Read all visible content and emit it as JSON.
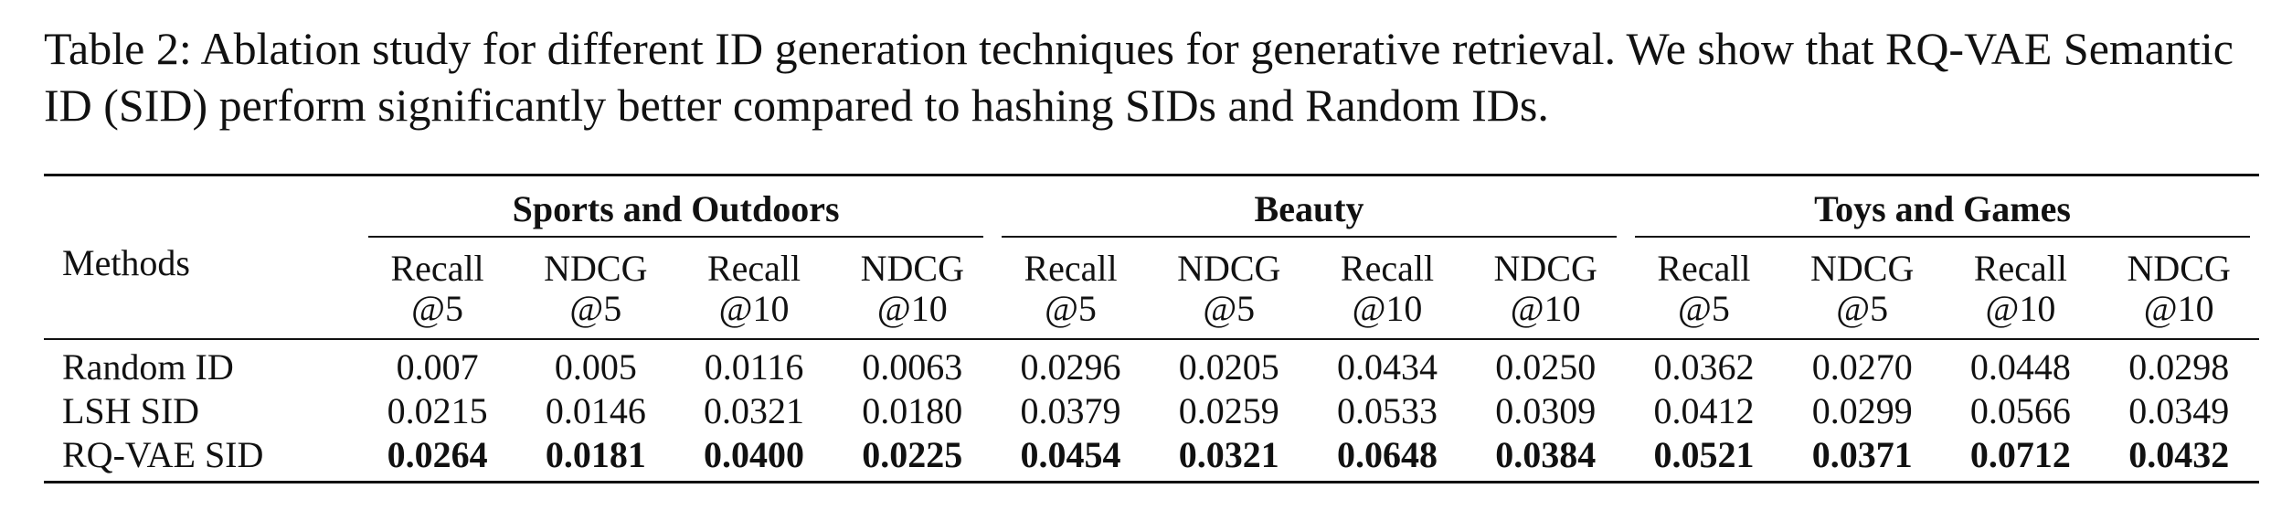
{
  "caption": {
    "label": "Table 2:",
    "text": "Ablation study for different ID generation techniques for generative retrieval. We show that RQ-VAE Semantic ID (SID) perform significantly better compared to hashing SIDs and Random IDs."
  },
  "table": {
    "row_header": "Methods",
    "groups": [
      "Sports and Outdoors",
      "Beauty",
      "Toys and Games"
    ],
    "columns": [
      [
        "Recall",
        "@5"
      ],
      [
        "NDCG",
        "@5"
      ],
      [
        "Recall",
        "@10"
      ],
      [
        "NDCG",
        "@10"
      ],
      [
        "Recall",
        "@5"
      ],
      [
        "NDCG",
        "@5"
      ],
      [
        "Recall",
        "@10"
      ],
      [
        "NDCG",
        "@10"
      ],
      [
        "Recall",
        "@5"
      ],
      [
        "NDCG",
        "@5"
      ],
      [
        "Recall",
        "@10"
      ],
      [
        "NDCG",
        "@10"
      ]
    ],
    "rows": [
      {
        "method": "Random ID",
        "values": [
          "0.007",
          "0.005",
          "0.0116",
          "0.0063",
          "0.0296",
          "0.0205",
          "0.0434",
          "0.0250",
          "0.0362",
          "0.0270",
          "0.0448",
          "0.0298"
        ]
      },
      {
        "method": "LSH SID",
        "values": [
          "0.0215",
          "0.0146",
          "0.0321",
          "0.0180",
          "0.0379",
          "0.0259",
          "0.0533",
          "0.0309",
          "0.0412",
          "0.0299",
          "0.0566",
          "0.0349"
        ]
      },
      {
        "method": "RQ-VAE SID",
        "values": [
          "0.0264",
          "0.0181",
          "0.0400",
          "0.0225",
          "0.0454",
          "0.0321",
          "0.0648",
          "0.0384",
          "0.0521",
          "0.0371",
          "0.0712",
          "0.0432"
        ]
      }
    ]
  }
}
